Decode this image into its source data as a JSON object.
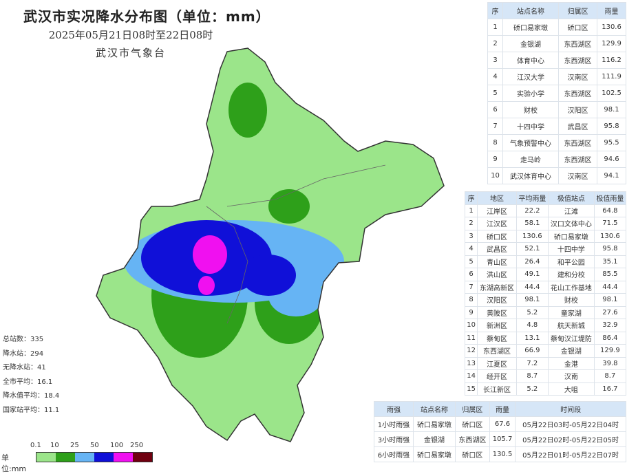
{
  "header": {
    "title": "武汉市实况降水分布图（单位：mm）",
    "subtitle": "2025年05月21日08时至22日08时",
    "org": "武汉市气象台"
  },
  "top_stations": {
    "columns": [
      "序",
      "站点名称",
      "归属区",
      "雨量"
    ],
    "rows": [
      [
        "1",
        "硚口易家墩",
        "硚口区",
        "130.6"
      ],
      [
        "2",
        "金银湖",
        "东西湖区",
        "129.9"
      ],
      [
        "3",
        "体育中心",
        "东西湖区",
        "116.2"
      ],
      [
        "4",
        "江汉大学",
        "汉南区",
        "111.9"
      ],
      [
        "5",
        "实验小学",
        "东西湖区",
        "102.5"
      ],
      [
        "6",
        "财校",
        "汉阳区",
        "98.1"
      ],
      [
        "7",
        "十四中学",
        "武昌区",
        "95.8"
      ],
      [
        "8",
        "气象预警中心",
        "东西湖区",
        "95.5"
      ],
      [
        "9",
        "走马岭",
        "东西湖区",
        "94.6"
      ],
      [
        "10",
        "武汉体育中心",
        "汉南区",
        "94.1"
      ]
    ]
  },
  "districts": {
    "columns": [
      "序",
      "地区",
      "平均雨量",
      "极值站点",
      "极值雨量"
    ],
    "rows": [
      [
        "1",
        "江岸区",
        "22.2",
        "江滩",
        "64.8"
      ],
      [
        "2",
        "江汉区",
        "58.1",
        "汉口文体中心",
        "71.5"
      ],
      [
        "3",
        "硚口区",
        "130.6",
        "硚口易家墩",
        "130.6"
      ],
      [
        "4",
        "武昌区",
        "52.1",
        "十四中学",
        "95.8"
      ],
      [
        "5",
        "青山区",
        "26.4",
        "和平公园",
        "35.1"
      ],
      [
        "6",
        "洪山区",
        "49.1",
        "建和分校",
        "85.5"
      ],
      [
        "7",
        "东湖高新区",
        "44.4",
        "花山工作基地",
        "44.4"
      ],
      [
        "8",
        "汉阳区",
        "98.1",
        "财校",
        "98.1"
      ],
      [
        "9",
        "黄陂区",
        "5.2",
        "童家湖",
        "27.6"
      ],
      [
        "10",
        "新洲区",
        "4.8",
        "航天新城",
        "32.9"
      ],
      [
        "11",
        "蔡甸区",
        "13.1",
        "蔡甸汉江堤防",
        "86.4"
      ],
      [
        "12",
        "东西湖区",
        "66.9",
        "金银湖",
        "129.9"
      ],
      [
        "13",
        "江夏区",
        "7.2",
        "金港",
        "39.8"
      ],
      [
        "14",
        "经开区",
        "8.7",
        "汉南",
        "8.7"
      ],
      [
        "15",
        "长江新区",
        "5.2",
        "大咀",
        "16.7"
      ]
    ]
  },
  "intensity": {
    "columns": [
      "雨强",
      "站点名称",
      "归属区",
      "雨量",
      "时间段"
    ],
    "rows": [
      [
        "1小时雨强",
        "硚口易家墩",
        "硚口区",
        "67.6",
        "05月22日03时-05月22日04时"
      ],
      [
        "3小时雨强",
        "金银湖",
        "东西湖区",
        "105.7",
        "05月22日02时-05月22日05时"
      ],
      [
        "6小时雨强",
        "硚口易家墩",
        "硚口区",
        "130.5",
        "05月22日01时-05月22日07时"
      ]
    ]
  },
  "stats": [
    "总站数：335",
    "降水站：294",
    "无降水站：41",
    "全市平均：16.1",
    "降水值平均：18.4",
    "国家站平均：11.1"
  ],
  "legend": {
    "unit": "单位:mm",
    "ticks": [
      "0.1",
      "10",
      "25",
      "50",
      "100",
      "250"
    ],
    "colors": [
      "#9be58a",
      "#2ea01a",
      "#66b4f4",
      "#1010d8",
      "#f010f0",
      "#700010"
    ]
  }
}
